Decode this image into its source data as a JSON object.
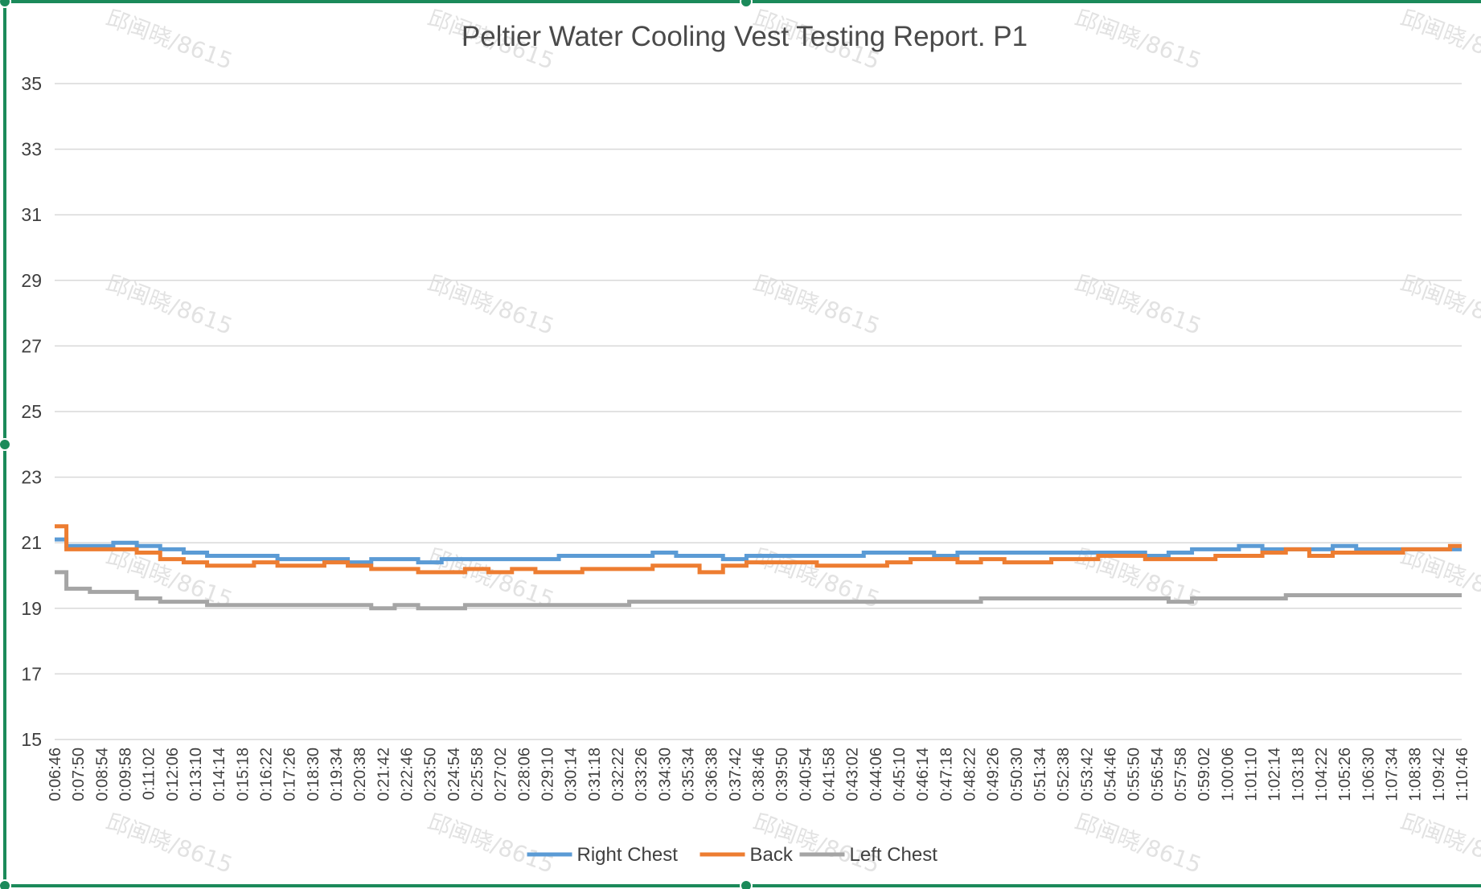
{
  "colors": {
    "right_chest": "#5b9bd5",
    "back": "#ed7d31",
    "left_chest": "#a5a5a5",
    "grid": "#d9d9d9",
    "selection": "#1b8a5a"
  },
  "watermark_text": "邱闽晓/8615",
  "chart_data": {
    "type": "line",
    "title": "Peltier Water Cooling Vest Testing Report. P1",
    "xlabel": "",
    "ylabel": "",
    "ylim": [
      15,
      35
    ],
    "yticks": [
      15,
      17,
      19,
      21,
      23,
      25,
      27,
      29,
      31,
      33,
      35
    ],
    "grid": true,
    "legend_position": "bottom",
    "categories": [
      "0:06:46",
      "0:07:50",
      "0:08:54",
      "0:09:58",
      "0:11:02",
      "0:12:06",
      "0:13:10",
      "0:14:14",
      "0:15:18",
      "0:16:22",
      "0:17:26",
      "0:18:30",
      "0:19:34",
      "0:20:38",
      "0:21:42",
      "0:22:46",
      "0:23:50",
      "0:24:54",
      "0:25:58",
      "0:27:02",
      "0:28:06",
      "0:29:10",
      "0:30:14",
      "0:31:18",
      "0:32:22",
      "0:33:26",
      "0:34:30",
      "0:35:34",
      "0:36:38",
      "0:37:42",
      "0:38:46",
      "0:39:50",
      "0:40:54",
      "0:41:58",
      "0:43:02",
      "0:44:06",
      "0:45:10",
      "0:46:14",
      "0:47:18",
      "0:48:22",
      "0:49:26",
      "0:50:30",
      "0:51:34",
      "0:52:38",
      "0:53:42",
      "0:54:46",
      "0:55:50",
      "0:56:54",
      "0:57:58",
      "0:59:02",
      "1:00:06",
      "1:01:10",
      "1:02:14",
      "1:03:18",
      "1:04:22",
      "1:05:26",
      "1:06:30",
      "1:07:34",
      "1:08:38",
      "1:09:42",
      "1:10:46"
    ],
    "series": [
      {
        "name": "Right Chest",
        "color": "#5b9bd5",
        "values": [
          21.1,
          20.9,
          20.9,
          21.0,
          20.9,
          20.8,
          20.7,
          20.6,
          20.6,
          20.6,
          20.5,
          20.5,
          20.5,
          20.4,
          20.5,
          20.5,
          20.4,
          20.5,
          20.5,
          20.5,
          20.5,
          20.5,
          20.6,
          20.6,
          20.6,
          20.6,
          20.7,
          20.6,
          20.6,
          20.5,
          20.6,
          20.6,
          20.6,
          20.6,
          20.6,
          20.7,
          20.7,
          20.7,
          20.6,
          20.7,
          20.7,
          20.7,
          20.7,
          20.7,
          20.7,
          20.7,
          20.7,
          20.6,
          20.7,
          20.8,
          20.8,
          20.9,
          20.8,
          20.8,
          20.8,
          20.9,
          20.8,
          20.8,
          20.8,
          20.8,
          20.8
        ]
      },
      {
        "name": "Back",
        "color": "#ed7d31",
        "values": [
          21.5,
          20.8,
          20.8,
          20.8,
          20.7,
          20.5,
          20.4,
          20.3,
          20.3,
          20.4,
          20.3,
          20.3,
          20.4,
          20.3,
          20.2,
          20.2,
          20.1,
          20.1,
          20.2,
          20.1,
          20.2,
          20.1,
          20.1,
          20.2,
          20.2,
          20.2,
          20.3,
          20.3,
          20.1,
          20.3,
          20.4,
          20.4,
          20.4,
          20.3,
          20.3,
          20.3,
          20.4,
          20.5,
          20.5,
          20.4,
          20.5,
          20.4,
          20.4,
          20.5,
          20.5,
          20.6,
          20.6,
          20.5,
          20.5,
          20.5,
          20.6,
          20.6,
          20.7,
          20.8,
          20.6,
          20.7,
          20.7,
          20.7,
          20.8,
          20.8,
          20.9
        ]
      },
      {
        "name": "Left Chest",
        "color": "#a5a5a5",
        "values": [
          20.1,
          19.6,
          19.5,
          19.5,
          19.3,
          19.2,
          19.2,
          19.1,
          19.1,
          19.1,
          19.1,
          19.1,
          19.1,
          19.1,
          19.0,
          19.1,
          19.0,
          19.0,
          19.1,
          19.1,
          19.1,
          19.1,
          19.1,
          19.1,
          19.1,
          19.2,
          19.2,
          19.2,
          19.2,
          19.2,
          19.2,
          19.2,
          19.2,
          19.2,
          19.2,
          19.2,
          19.2,
          19.2,
          19.2,
          19.2,
          19.3,
          19.3,
          19.3,
          19.3,
          19.3,
          19.3,
          19.3,
          19.3,
          19.2,
          19.3,
          19.3,
          19.3,
          19.3,
          19.4,
          19.4,
          19.4,
          19.4,
          19.4,
          19.4,
          19.4,
          19.4
        ]
      }
    ]
  }
}
